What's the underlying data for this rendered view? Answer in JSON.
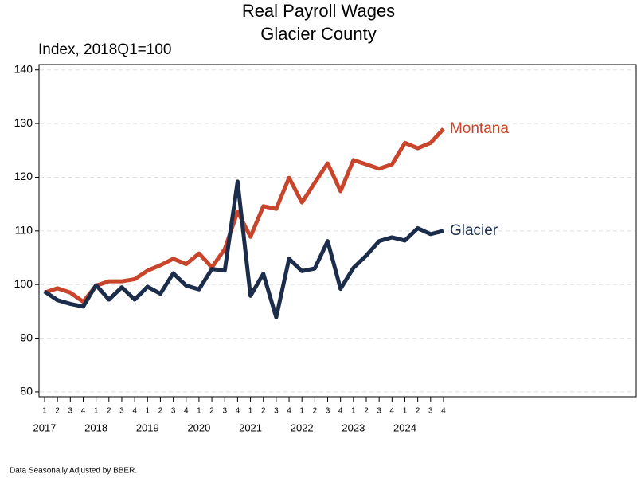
{
  "chart_data": {
    "type": "line",
    "title": "Real Payroll Wages",
    "subtitle": "Glacier County",
    "y_label": "Index, 2018Q1=100",
    "footnote": "Data Seasonally Adjusted by BBER.",
    "categories": [
      "1",
      "2",
      "3",
      "4",
      "1",
      "2",
      "3",
      "4",
      "1",
      "2",
      "3",
      "4",
      "1",
      "2",
      "3",
      "4",
      "1",
      "2",
      "3",
      "4",
      "1",
      "2",
      "3",
      "4",
      "1",
      "2",
      "3",
      "4",
      "1",
      "2",
      "3",
      "4"
    ],
    "years": [
      2017,
      2018,
      2019,
      2020,
      2021,
      2022,
      2023,
      2024
    ],
    "series": [
      {
        "name": "Montana",
        "color": "#c8442a",
        "values": [
          98.5,
          99.3,
          98.5,
          96.8,
          99.8,
          100.6,
          100.6,
          101.0,
          102.6,
          103.6,
          104.8,
          103.8,
          105.8,
          103.2,
          106.6,
          113.6,
          108.9,
          114.6,
          114.1,
          119.9,
          115.3,
          119.0,
          122.6,
          117.4,
          123.2,
          122.4,
          121.6,
          122.4,
          126.4,
          125.4,
          126.4,
          129.0
        ]
      },
      {
        "name": "Glacier",
        "color": "#1b2d4b",
        "values": [
          98.7,
          97.1,
          96.4,
          95.9,
          99.9,
          97.2,
          99.5,
          97.2,
          99.6,
          98.3,
          102.1,
          99.8,
          99.1,
          102.9,
          102.6,
          119.2,
          97.9,
          102.0,
          93.9,
          104.8,
          102.5,
          103.0,
          108.1,
          99.2,
          103.1,
          105.4,
          108.1,
          108.8,
          108.2,
          110.5,
          109.4,
          110.0
        ]
      }
    ],
    "ylim": [
      79.1,
      141
    ],
    "yticks": [
      80,
      90,
      100,
      110,
      120,
      130,
      140
    ],
    "grid": true
  }
}
